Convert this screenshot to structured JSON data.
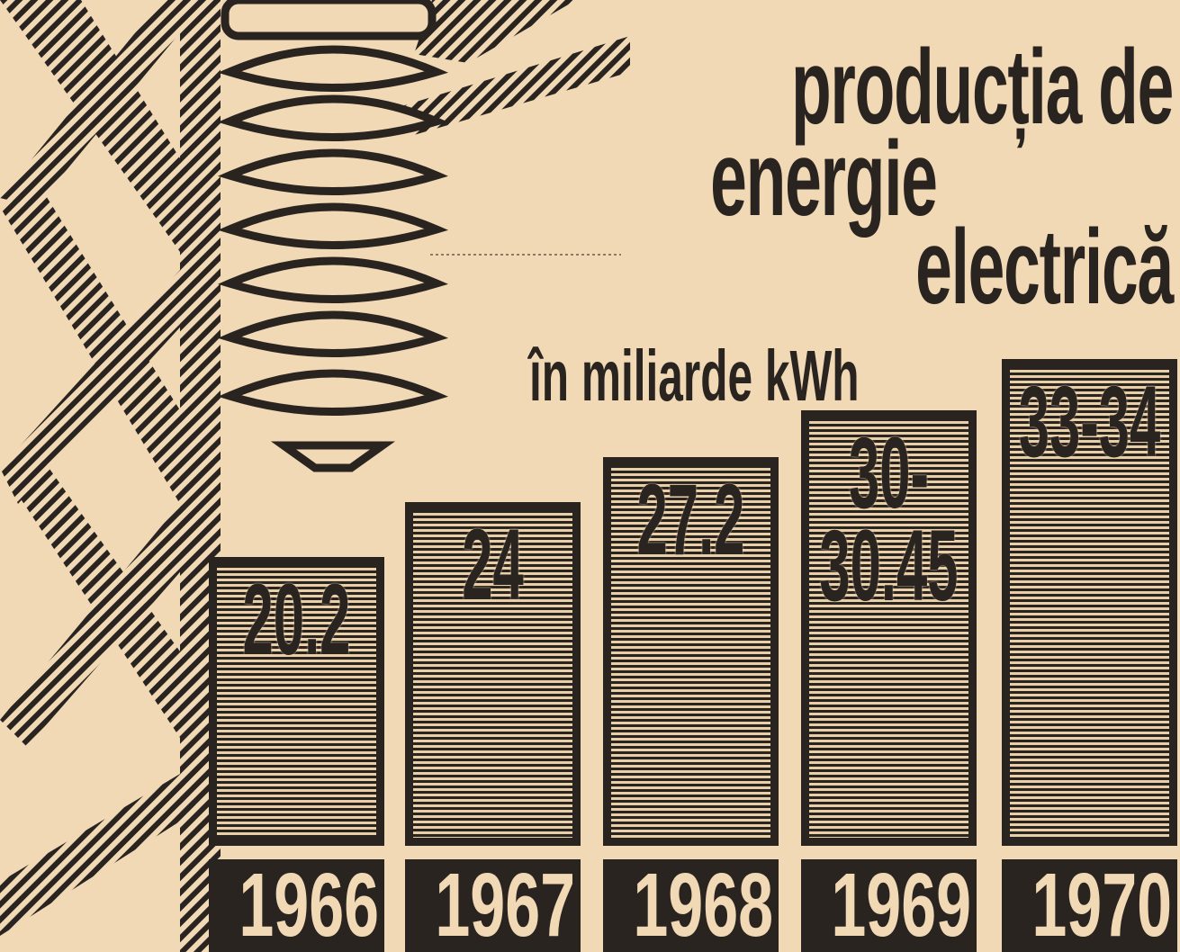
{
  "chart_data": {
    "type": "bar",
    "title": [
      "producția de",
      "energie",
      "electrică"
    ],
    "subtitle": "în miliarde kWh",
    "categories": [
      "1966",
      "1967",
      "1968",
      "1969",
      "1970"
    ],
    "values": [
      20.2,
      24,
      27.2,
      30.45,
      34
    ],
    "value_labels": [
      "20.2",
      "24",
      "27.2",
      "30-30.45",
      "33-34"
    ],
    "color": "#2a2420"
  }
}
